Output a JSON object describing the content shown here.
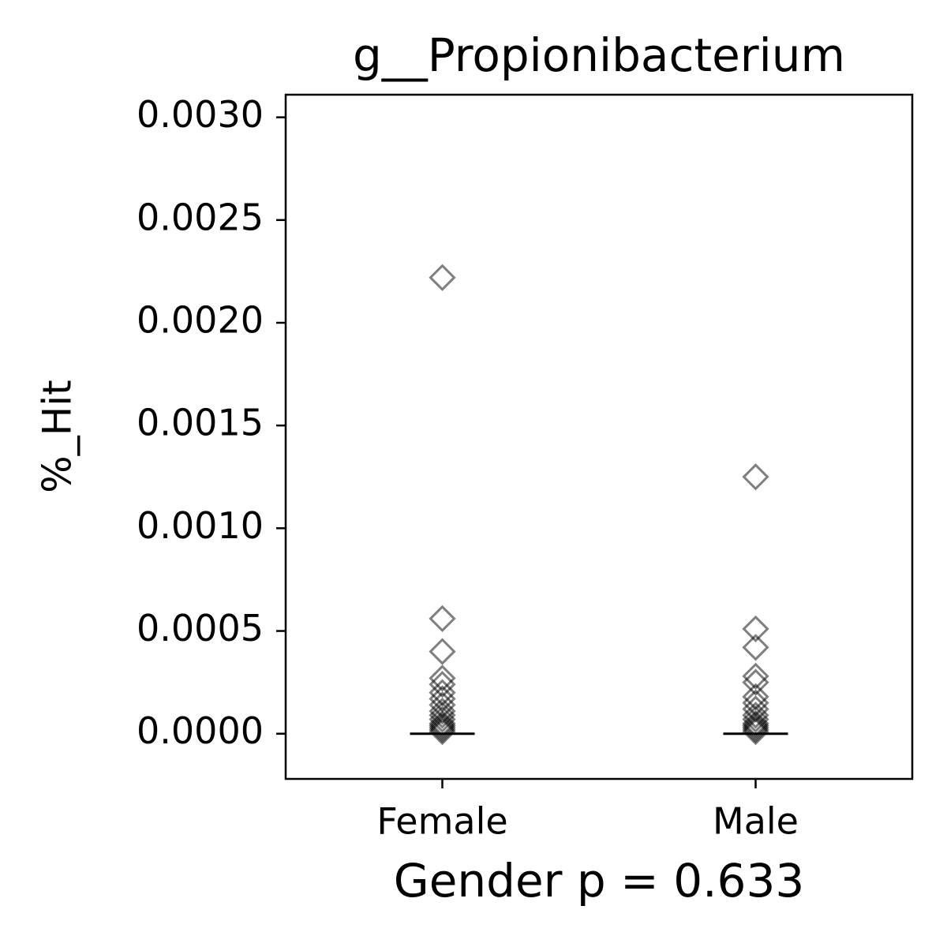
{
  "chart_data": {
    "type": "strip",
    "title": "g__Propionibacterium",
    "x_label": "Gender p = 0.633",
    "y_label": "%_Hit",
    "categories": [
      "Female",
      "Male"
    ],
    "values": [
      [
        0.00222,
        0.00056,
        0.0004,
        0.00027,
        0.00024,
        0.0002,
        0.00017,
        0.00014,
        0.00011,
        9e-05,
        7e-05,
        5e-05,
        4e-05,
        3e-05,
        2e-05,
        1e-05
      ],
      [
        0.00125,
        0.00051,
        0.00042,
        0.00028,
        0.00025,
        0.00018,
        0.00015,
        0.00012,
        9e-05,
        7e-05,
        5e-05,
        4e-05,
        3e-05,
        2e-05,
        1e-05
      ]
    ],
    "medians": [
      0,
      0
    ],
    "color": "#000000",
    "ylim": [
      -0.00022,
      0.00311
    ],
    "yticks": [
      {
        "value": 0,
        "label": "0.0000"
      },
      {
        "value": 0.0005,
        "label": "0.0005"
      },
      {
        "value": 0.001,
        "label": "0.0010"
      },
      {
        "value": 0.0015,
        "label": "0.0015"
      },
      {
        "value": 0.002,
        "label": "0.0020"
      },
      {
        "value": 0.0025,
        "label": "0.0025"
      },
      {
        "value": 0.003,
        "label": "0.0030"
      }
    ],
    "grid": false
  }
}
